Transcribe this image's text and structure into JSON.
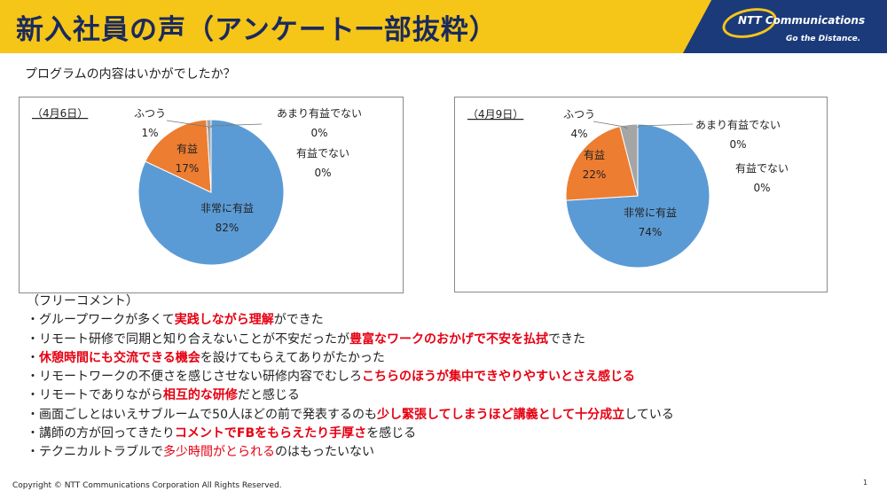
{
  "header": {
    "title": "新入社員の声（アンケート一部抜粋）"
  },
  "logo": {
    "brand": "NTT Communications",
    "tagline": "Go the Distance."
  },
  "question": "プログラムの内容はいかがでしたか？",
  "chart_data": [
    {
      "type": "pie",
      "title": "（4月6日）",
      "colors": {
        "非常に有益": "#5b9bd5",
        "有益": "#ed7d31",
        "ふつう": "#a5a5a5",
        "あまり有益でない": "#ffc000",
        "有益でない": "#4472c4"
      },
      "slices": [
        {
          "label": "非常に有益",
          "value": 82,
          "value_label": "82%"
        },
        {
          "label": "有益",
          "value": 17,
          "value_label": "17%"
        },
        {
          "label": "ふつう",
          "value": 1,
          "value_label": "1%"
        },
        {
          "label": "あまり有益でない",
          "value": 0,
          "value_label": "0%"
        },
        {
          "label": "有益でない",
          "value": 0,
          "value_label": "0%"
        }
      ]
    },
    {
      "type": "pie",
      "title": "（4月9日）",
      "colors": {
        "非常に有益": "#5b9bd5",
        "有益": "#ed7d31",
        "ふつう": "#a5a5a5",
        "あまり有益でない": "#ffc000",
        "有益でない": "#4472c4"
      },
      "slices": [
        {
          "label": "非常に有益",
          "value": 74,
          "value_label": "74%"
        },
        {
          "label": "有益",
          "value": 22,
          "value_label": "22%"
        },
        {
          "label": "ふつう",
          "value": 4,
          "value_label": "4%"
        },
        {
          "label": "あまり有益でない",
          "value": 0,
          "value_label": "0%"
        },
        {
          "label": "有益でない",
          "value": 0,
          "value_label": "0%"
        }
      ]
    }
  ],
  "comments": {
    "heading": "（フリーコメント）",
    "items": [
      [
        {
          "t": "・グループワークが多くて",
          "s": "n"
        },
        {
          "t": "実践しながら理解",
          "s": "h"
        },
        {
          "t": "ができた",
          "s": "n"
        }
      ],
      [
        {
          "t": "・リモート研修で同期と知り合えないことが不安だったが",
          "s": "n"
        },
        {
          "t": "豊富なワークのおかげで不安を払拭",
          "s": "h"
        },
        {
          "t": "できた",
          "s": "n"
        }
      ],
      [
        {
          "t": "・",
          "s": "n"
        },
        {
          "t": "休憩時間にも交流できる機会",
          "s": "h"
        },
        {
          "t": "を設けてもらえてありがたかった",
          "s": "n"
        }
      ],
      [
        {
          "t": "・リモートワークの不便さを感じさせない研修内容でむしろ",
          "s": "n"
        },
        {
          "t": "こちらのほうが集中できやりやすいとさえ感じる",
          "s": "h"
        }
      ],
      [
        {
          "t": "・リモートでありながら",
          "s": "n"
        },
        {
          "t": "相互的な研修",
          "s": "h"
        },
        {
          "t": "だと感じる",
          "s": "n"
        }
      ],
      [
        {
          "t": "・画面ごしとはいえサブルームで50人ほどの前で発表するのも",
          "s": "n"
        },
        {
          "t": "少し緊張してしまうほど講義として十分成立",
          "s": "h"
        },
        {
          "t": "している",
          "s": "n"
        }
      ],
      [
        {
          "t": "・講師の方が回ってきたり",
          "s": "n"
        },
        {
          "t": "コメントでFBをもらえたり手厚さ",
          "s": "h"
        },
        {
          "t": "を感じる",
          "s": "n"
        }
      ],
      [
        {
          "t": "・テクニカルトラブルで",
          "s": "n"
        },
        {
          "t": "多少時間がとられる",
          "s": "r"
        },
        {
          "t": "のはもったいない",
          "s": "n"
        }
      ]
    ]
  },
  "footer": "Copyright © NTT Communications Corporation All Rights Reserved.",
  "page_number": "1"
}
